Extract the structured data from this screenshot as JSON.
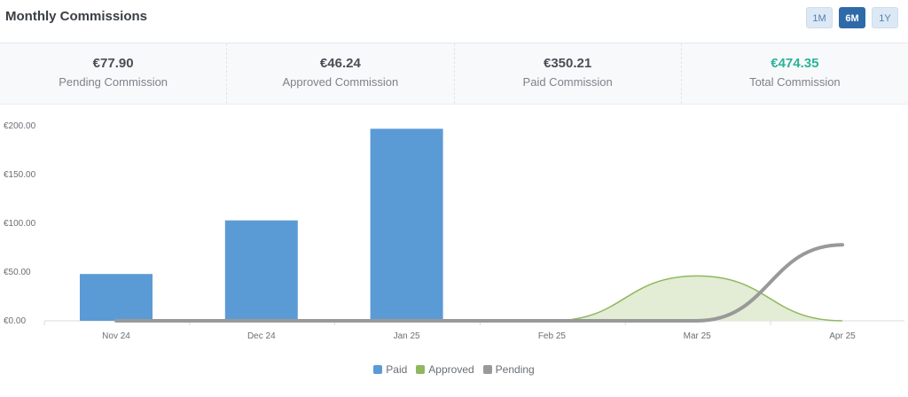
{
  "header": {
    "title": "Monthly Commissions",
    "ranges": [
      "1M",
      "6M",
      "1Y"
    ],
    "active_range": "6M"
  },
  "stats": [
    {
      "value": "€77.90",
      "label": "Pending Commission"
    },
    {
      "value": "€46.24",
      "label": "Approved Commission"
    },
    {
      "value": "€350.21",
      "label": "Paid Commission"
    },
    {
      "value": "€474.35",
      "label": "Total Commission"
    }
  ],
  "colors": {
    "paid": "#5b9bd5",
    "approved": "#8fb85f",
    "approved_fill": "#e3ecd4",
    "pending": "#999999",
    "total_value": "#2ab39a",
    "active_button": "#2f6aa8"
  },
  "chart_data": {
    "type": "bar",
    "categories": [
      "Nov 24",
      "Dec 24",
      "Jan 25",
      "Feb 25",
      "Mar 25",
      "Apr 25"
    ],
    "ylim": [
      0,
      200
    ],
    "yticks": [
      "€0.00",
      "€50.00",
      "€100.00",
      "€150.00",
      "€200.00"
    ],
    "ytick_values": [
      0,
      50,
      100,
      150,
      200
    ],
    "series": [
      {
        "name": "Paid",
        "kind": "bar",
        "values": [
          48,
          103,
          197,
          0,
          0,
          0
        ]
      },
      {
        "name": "Approved",
        "kind": "area",
        "values": [
          0,
          0,
          0,
          0,
          46,
          0
        ]
      },
      {
        "name": "Pending",
        "kind": "line",
        "values": [
          0,
          0,
          0,
          0,
          0,
          78
        ]
      }
    ],
    "legend_position": "bottom-center",
    "grid": false
  }
}
